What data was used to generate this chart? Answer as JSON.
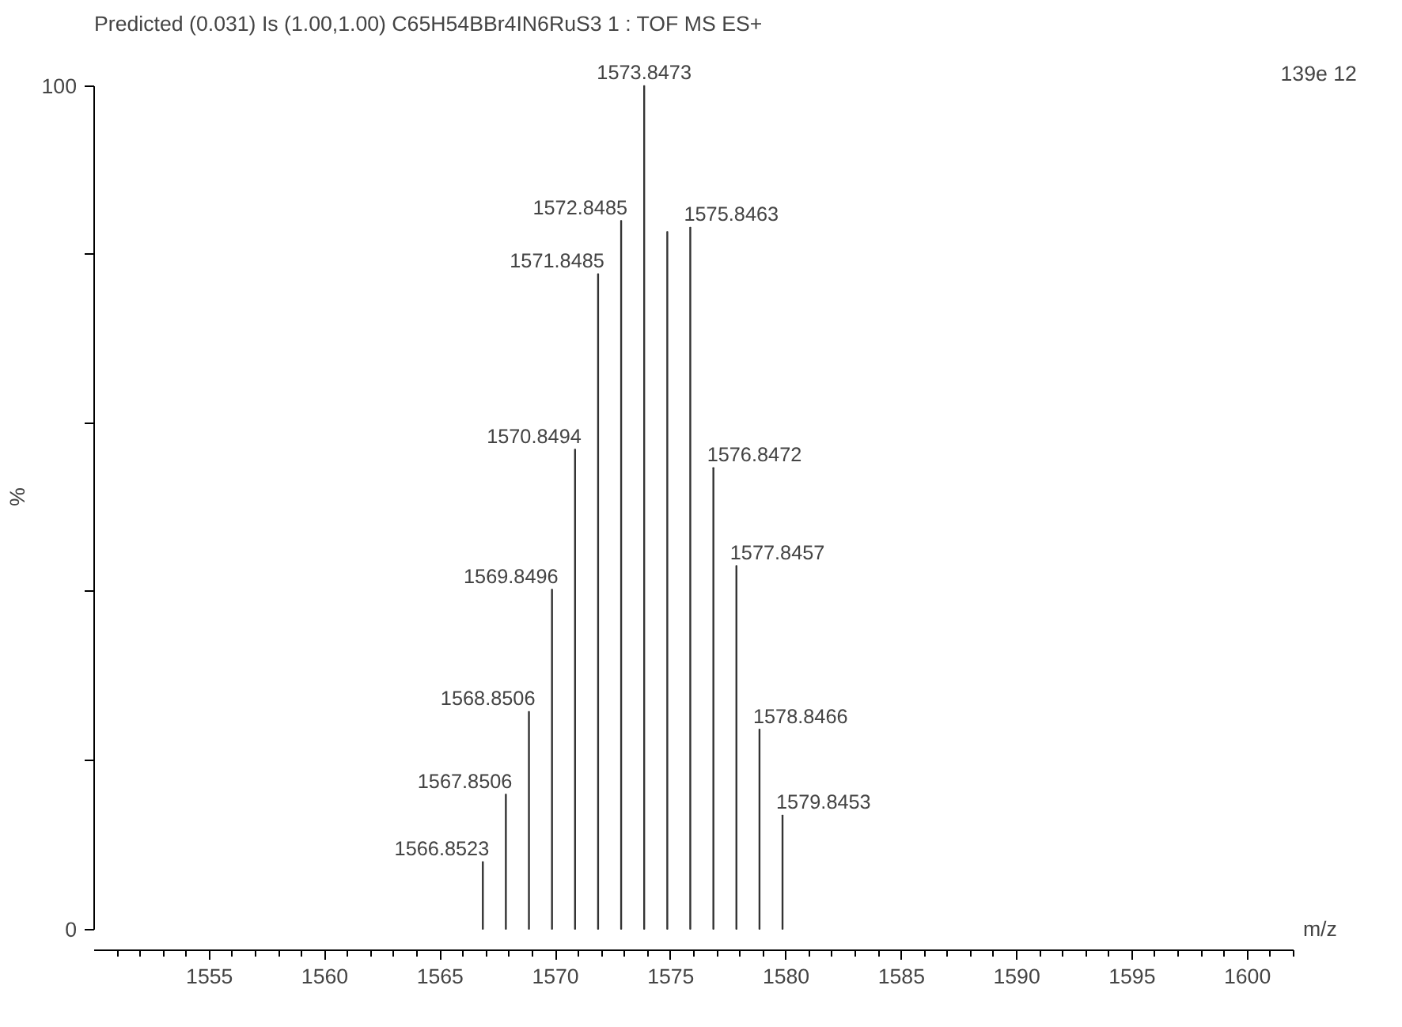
{
  "chart_data": {
    "type": "bar",
    "title": "Predicted  (0.031) Is (1.00,1.00) C65H54BBr4IN6RuS3     1 : TOF MS ES+",
    "xlabel": "m/z",
    "ylabel": "%",
    "x": [
      1566.8523,
      1567.8506,
      1568.8506,
      1569.8496,
      1570.8494,
      1571.8485,
      1572.8485,
      1573.8473,
      1574.85,
      1575.8463,
      1576.8472,
      1577.8457,
      1578.8466,
      1579.8453
    ],
    "values": [
      8.0,
      16.0,
      25.8,
      40.3,
      56.9,
      77.7,
      84.0,
      100,
      82.7,
      83.2,
      54.7,
      43.1,
      23.7,
      13.5
    ],
    "color": "#333333",
    "xlim": [
      1550,
      1602
    ],
    "ylim": [
      0,
      100
    ],
    "xticks": [
      1555,
      1560,
      1565,
      1570,
      1575,
      1580,
      1585,
      1590,
      1595,
      1600
    ],
    "yticks": [
      0,
      {
        "value": 20,
        "label": null
      },
      {
        "value": 40,
        "label": null
      },
      {
        "value": 60,
        "label": null
      },
      {
        "value": 80,
        "label": null
      },
      100
    ],
    "annotations": [
      {
        "text": "1566.8523",
        "x": 1566.8523,
        "y": 8.0
      },
      {
        "text": "1567.8506",
        "x": 1567.8506,
        "y": 16.0
      },
      {
        "text": "1568.8506",
        "x": 1568.8506,
        "y": 25.8
      },
      {
        "text": "1569.8496",
        "x": 1569.8496,
        "y": 40.3
      },
      {
        "text": "1570.8494",
        "x": 1570.8494,
        "y": 56.9
      },
      {
        "text": "1571.8485",
        "x": 1571.8485,
        "y": 77.7
      },
      {
        "text": "1572.8485",
        "x": 1572.8485,
        "y": 84.0
      },
      {
        "text": "1573.8473",
        "x": 1573.8473,
        "y": 100
      },
      {
        "text": "1575.8463",
        "x": 1575.8463,
        "y": 83.2
      },
      {
        "text": "1576.8472",
        "x": 1576.8472,
        "y": 54.7
      },
      {
        "text": "1577.8457",
        "x": 1577.8457,
        "y": 43.1
      },
      {
        "text": "1578.8466",
        "x": 1578.8466,
        "y": 23.7
      },
      {
        "text": "1579.8453",
        "x": 1579.8453,
        "y": 13.5
      },
      "139e 12"
    ],
    "grid": false
  }
}
